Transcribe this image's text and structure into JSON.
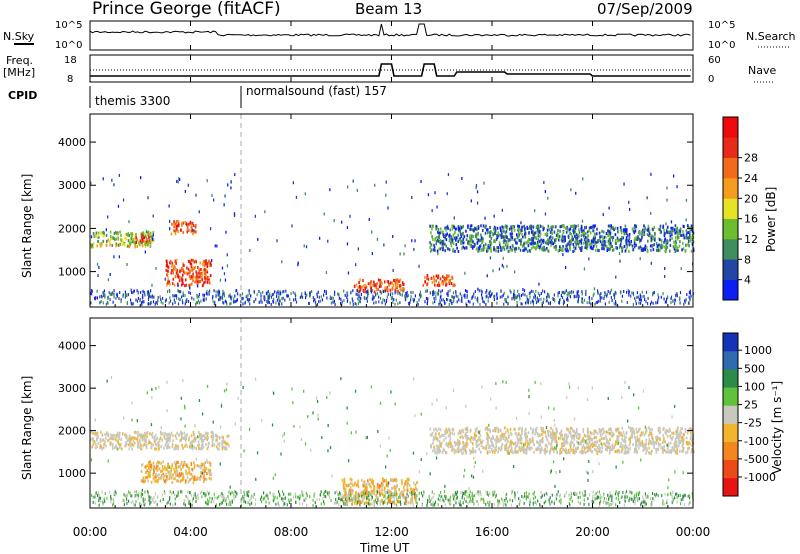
{
  "header": {
    "station": "Prince George (fitACF)",
    "beam": "Beam 13",
    "date": "07/Sep/2009"
  },
  "left_labels": {
    "nsky": "N.Sky",
    "freq_line1": "Freq.",
    "freq_line2": "[MHz]",
    "cpid": "CPID"
  },
  "right_labels": {
    "nsearch": "N.Search",
    "nave": "Nave"
  },
  "noise_panel": {
    "ytick_top": "10^5",
    "ytick_bottom": "10^0",
    "rtick_top": "10^5",
    "rtick_bottom": "10^0"
  },
  "freq_panel": {
    "ytick_top": "18",
    "ytick_bottom": "8",
    "rtick_top": "60",
    "rtick_bottom": "0"
  },
  "cpid_panel": {
    "mode1": "themis 3300",
    "mode2": "normalsound (fast) 157"
  },
  "power_panel": {
    "ylabel": "Slant Range [km]",
    "yticks": [
      "1000",
      "2000",
      "3000",
      "4000"
    ],
    "colorbar_label": "Power [dB]",
    "colorbar_ticks": [
      "4",
      "8",
      "12",
      "16",
      "20",
      "24",
      "28"
    ],
    "colors": [
      "#0b1ef5",
      "#2346a6",
      "#3f8e60",
      "#6dbd2e",
      "#e6e226",
      "#f59b1e",
      "#f26a1b",
      "#e82a1a",
      "#ee0a0a"
    ]
  },
  "velocity_panel": {
    "ylabel": "Slant Range [km]",
    "yticks": [
      "1000",
      "2000",
      "3000",
      "4000"
    ],
    "colorbar_label": "Velocity [m s⁻¹]",
    "colorbar_ticks": [
      "1000",
      "500",
      "100",
      "25",
      "-25",
      "-100",
      "-500",
      "-1000"
    ],
    "colors": [
      "#1733b5",
      "#2f6ab0",
      "#2d8b4a",
      "#5fc23c",
      "#c8c8be",
      "#f2b530",
      "#f4861e",
      "#ec4a19",
      "#e81414"
    ]
  },
  "x_axis": {
    "ticks": [
      "00:00",
      "04:00",
      "08:00",
      "12:00",
      "16:00",
      "20:00",
      "00:00"
    ],
    "label": "Time UT"
  },
  "chart_data": {
    "type": "heatmap",
    "x_range_hours": [
      0,
      24
    ],
    "y_range_km": [
      180,
      4650
    ],
    "mode_change_hour": 6,
    "power_regions": [
      {
        "t": [
          0,
          2.5
        ],
        "r": [
          1600,
          1950
        ],
        "level": "green-yellow"
      },
      {
        "t": [
          1.8,
          2.4
        ],
        "r": [
          1700,
          1900
        ],
        "level": "red"
      },
      {
        "t": [
          3.0,
          4.8
        ],
        "r": [
          700,
          1300
        ],
        "level": "red"
      },
      {
        "t": [
          3.2,
          4.2
        ],
        "r": [
          1900,
          2200
        ],
        "level": "red"
      },
      {
        "t": [
          10.5,
          12.5
        ],
        "r": [
          550,
          850
        ],
        "level": "red"
      },
      {
        "t": [
          13.2,
          14.5
        ],
        "r": [
          700,
          950
        ],
        "level": "red"
      },
      {
        "t": [
          13.5,
          24
        ],
        "r": [
          1500,
          2100
        ],
        "level": "green-blue"
      }
    ],
    "velocity_regions": [
      {
        "t": [
          0,
          5.5
        ],
        "r": [
          1600,
          2000
        ],
        "level": "-25..25"
      },
      {
        "t": [
          2,
          4.8
        ],
        "r": [
          800,
          1300
        ],
        "level": "-100..-25"
      },
      {
        "t": [
          10,
          13
        ],
        "r": [
          300,
          900
        ],
        "level": "-100..-25"
      },
      {
        "t": [
          13.5,
          24
        ],
        "r": [
          1500,
          2100
        ],
        "level": "-25..25"
      }
    ]
  }
}
